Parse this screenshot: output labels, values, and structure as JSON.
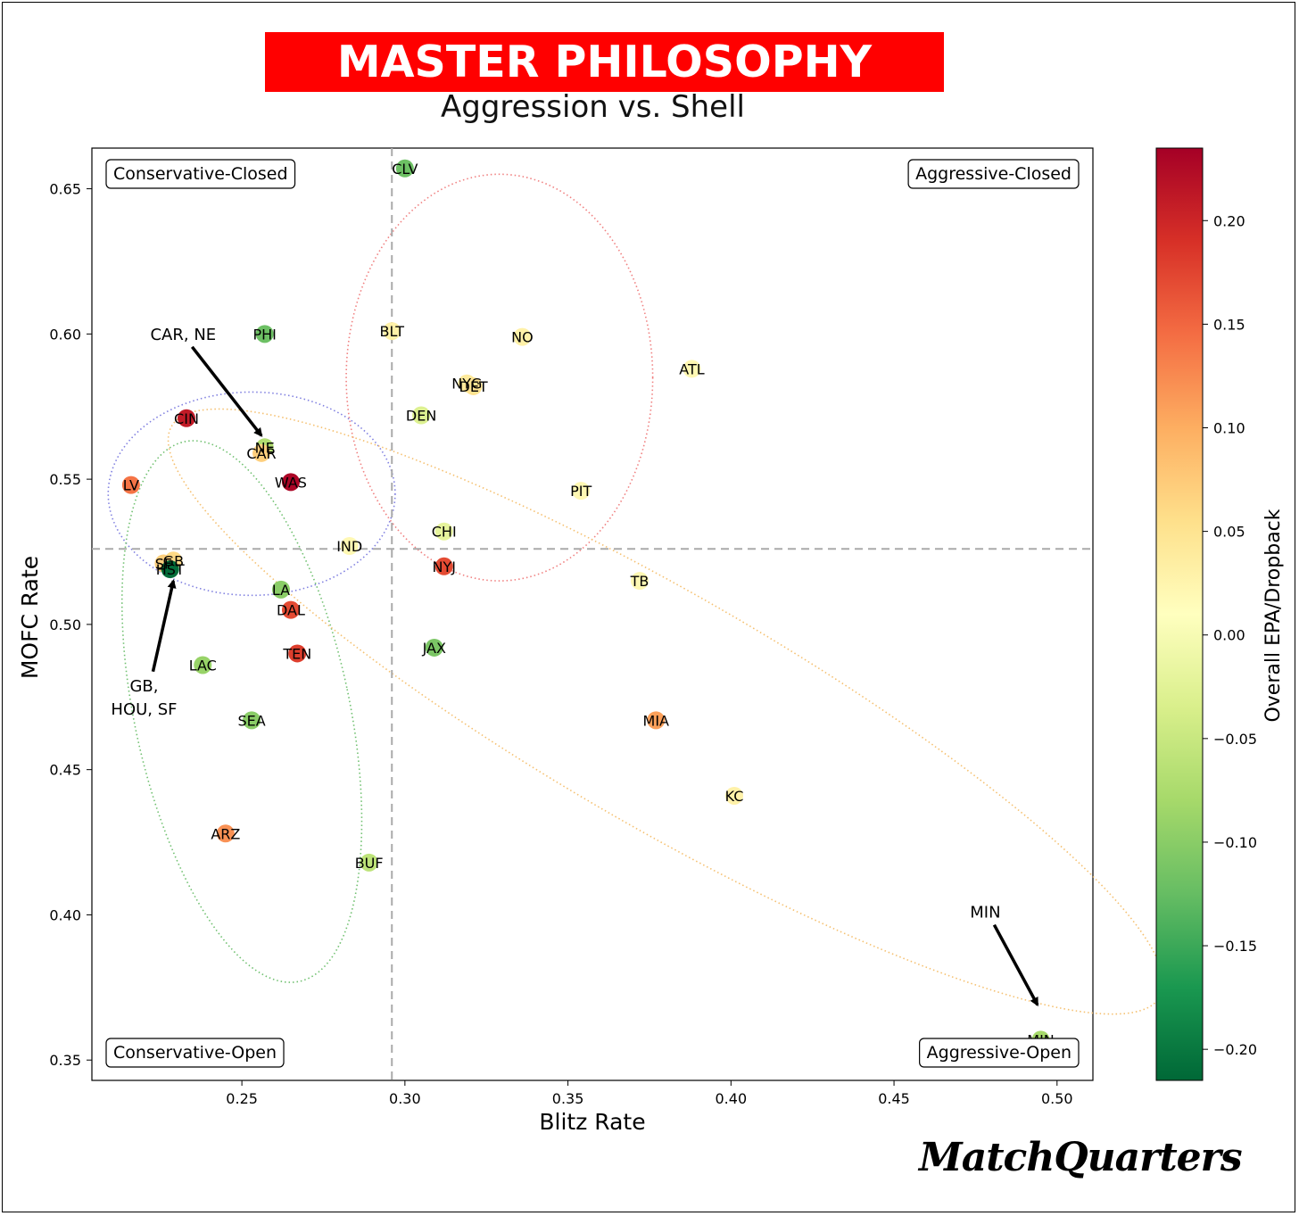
{
  "title": "MASTER PHILOSOPHY",
  "subtitle": "Aggression vs. Shell",
  "logo": "MatchQuarters",
  "chart_data": {
    "type": "scatter",
    "xlabel": "Blitz Rate",
    "ylabel": "MOFC Rate",
    "colorbar_label": "Overall EPA/Dropback",
    "xlim": [
      0.204,
      0.511
    ],
    "ylim": [
      0.343,
      0.664
    ],
    "xticks": [
      0.25,
      0.3,
      0.35,
      0.4,
      0.45,
      0.5
    ],
    "xtick_labels": [
      "0.25",
      "0.30",
      "0.35",
      "0.40",
      "0.45",
      "0.50"
    ],
    "yticks": [
      0.35,
      0.4,
      0.45,
      0.5,
      0.55,
      0.6,
      0.65
    ],
    "ytick_labels": [
      "0.35",
      "0.40",
      "0.45",
      "0.50",
      "0.55",
      "0.60",
      "0.65"
    ],
    "colorbar_range": [
      -0.215,
      0.235
    ],
    "colorbar_ticks": [
      0.2,
      0.15,
      0.1,
      0.05,
      0.0,
      -0.05,
      -0.1,
      -0.15,
      -0.2
    ],
    "colorbar_tick_labels": [
      "0.20",
      "0.15",
      "0.10",
      "0.05",
      "0.00",
      "−0.05",
      "−0.10",
      "−0.15",
      "−0.20"
    ],
    "colormap": "RdYlGn_r",
    "reference_lines": {
      "x": 0.296,
      "y": 0.526,
      "style": "dashed",
      "color": "#aaaaaa"
    },
    "quadrant_labels": [
      "Conservative-Closed",
      "Aggressive-Closed",
      "Conservative-Open",
      "Aggressive-Open"
    ],
    "grid": false,
    "points": [
      {
        "team": "CLV",
        "x": 0.3,
        "y": 0.657,
        "epa": -0.12
      },
      {
        "team": "PHI",
        "x": 0.257,
        "y": 0.6,
        "epa": -0.12
      },
      {
        "team": "BLT",
        "x": 0.296,
        "y": 0.601,
        "epa": 0.03
      },
      {
        "team": "NO",
        "x": 0.336,
        "y": 0.599,
        "epa": 0.03
      },
      {
        "team": "ATL",
        "x": 0.388,
        "y": 0.588,
        "epa": 0.02
      },
      {
        "team": "NYG",
        "x": 0.319,
        "y": 0.583,
        "epa": 0.04
      },
      {
        "team": "DET",
        "x": 0.321,
        "y": 0.582,
        "epa": 0.05
      },
      {
        "team": "CIN",
        "x": 0.233,
        "y": 0.571,
        "epa": 0.21
      },
      {
        "team": "DEN",
        "x": 0.305,
        "y": 0.572,
        "epa": -0.03
      },
      {
        "team": "NE",
        "x": 0.257,
        "y": 0.561,
        "epa": -0.07
      },
      {
        "team": "CAR",
        "x": 0.256,
        "y": 0.559,
        "epa": 0.07
      },
      {
        "team": "WAS",
        "x": 0.265,
        "y": 0.549,
        "epa": 0.23
      },
      {
        "team": "LV",
        "x": 0.216,
        "y": 0.548,
        "epa": 0.14
      },
      {
        "team": "PIT",
        "x": 0.354,
        "y": 0.546,
        "epa": 0.02
      },
      {
        "team": "CHI",
        "x": 0.312,
        "y": 0.532,
        "epa": -0.02
      },
      {
        "team": "IND",
        "x": 0.283,
        "y": 0.527,
        "epa": 0.02
      },
      {
        "team": "GB",
        "x": 0.229,
        "y": 0.522,
        "epa": 0.06
      },
      {
        "team": "SF",
        "x": 0.226,
        "y": 0.521,
        "epa": 0.07
      },
      {
        "team": "HST",
        "x": 0.228,
        "y": 0.519,
        "epa": -0.21
      },
      {
        "team": "NYJ",
        "x": 0.312,
        "y": 0.52,
        "epa": 0.17
      },
      {
        "team": "TB",
        "x": 0.372,
        "y": 0.515,
        "epa": 0.02
      },
      {
        "team": "LA",
        "x": 0.262,
        "y": 0.512,
        "epa": -0.1
      },
      {
        "team": "DAL",
        "x": 0.265,
        "y": 0.505,
        "epa": 0.17
      },
      {
        "team": "JAX",
        "x": 0.309,
        "y": 0.492,
        "epa": -0.11
      },
      {
        "team": "TEN",
        "x": 0.267,
        "y": 0.49,
        "epa": 0.18
      },
      {
        "team": "LAC",
        "x": 0.238,
        "y": 0.486,
        "epa": -0.09
      },
      {
        "team": "SEA",
        "x": 0.253,
        "y": 0.467,
        "epa": -0.1
      },
      {
        "team": "MIA",
        "x": 0.377,
        "y": 0.467,
        "epa": 0.11
      },
      {
        "team": "KC",
        "x": 0.401,
        "y": 0.441,
        "epa": 0.03
      },
      {
        "team": "ARZ",
        "x": 0.245,
        "y": 0.428,
        "epa": 0.12
      },
      {
        "team": "BUF",
        "x": 0.289,
        "y": 0.418,
        "epa": -0.06
      },
      {
        "team": "MIN",
        "x": 0.495,
        "y": 0.357,
        "epa": -0.08
      }
    ],
    "ellipses": [
      {
        "color": "#f08080",
        "cx": 0.329,
        "cy": 0.585,
        "rx": 0.047,
        "ry": 0.07
      },
      {
        "color": "#8080e0",
        "cx": 0.253,
        "cy": 0.545,
        "rx": 0.044,
        "ry": 0.035
      },
      {
        "color": "#70c070",
        "cx": 0.25,
        "cy": 0.47,
        "rx": 0.033,
        "ry": 0.095,
        "rotate": -12
      },
      {
        "color": "#f5c070",
        "cx": 0.38,
        "cy": 0.47,
        "rx": 0.175,
        "ry": 0.04,
        "rotate": 30
      }
    ],
    "annotations": [
      {
        "text": "CAR, NE",
        "text_x": 0.232,
        "text_y": 0.598,
        "arrow_to_x": 0.256,
        "arrow_to_y": 0.565
      },
      {
        "text": "GB,",
        "text_x": 0.22,
        "text_y": 0.477,
        "arrow_to_x": 0.229,
        "arrow_to_y": 0.515
      },
      {
        "text": "HOU, SF",
        "text_x": 0.22,
        "text_y": 0.469
      },
      {
        "text": "MIN",
        "text_x": 0.478,
        "text_y": 0.399,
        "arrow_to_x": 0.494,
        "arrow_to_y": 0.369
      }
    ]
  }
}
